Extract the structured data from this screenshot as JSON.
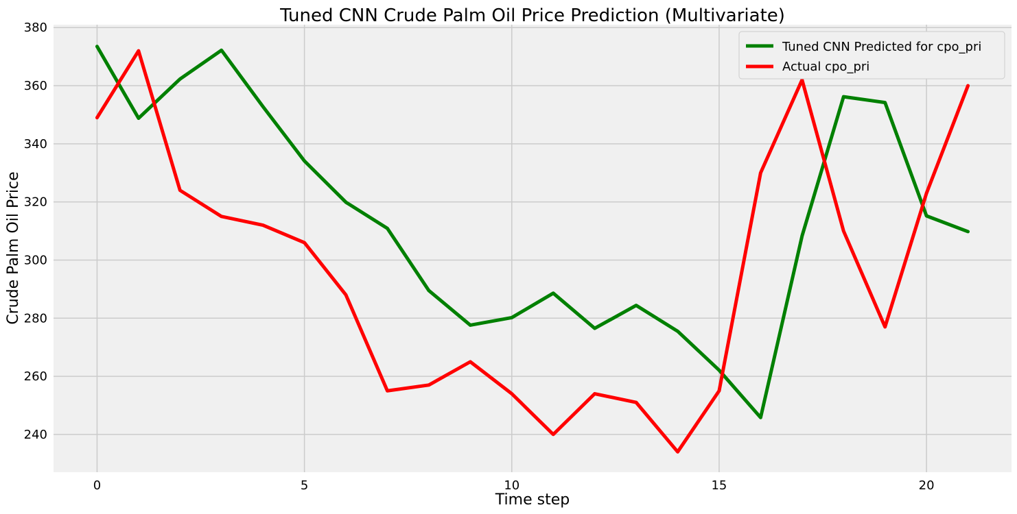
{
  "chart_data": {
    "type": "line",
    "title": "Tuned CNN Crude Palm Oil Price Prediction (Multivariate)",
    "xlabel": "Time step",
    "ylabel": "Crude Palm Oil Price",
    "xlim": [
      -1.05,
      22.05
    ],
    "ylim": [
      227,
      381
    ],
    "xticks": [
      0,
      5,
      10,
      15,
      20
    ],
    "yticks": [
      240,
      260,
      280,
      300,
      320,
      340,
      360,
      380
    ],
    "grid": true,
    "legend_position": "top-right",
    "x": [
      0,
      1,
      2,
      3,
      4,
      5,
      6,
      7,
      8,
      9,
      10,
      11,
      12,
      13,
      14,
      15,
      16,
      17,
      18,
      19,
      20,
      21
    ],
    "series": [
      {
        "name": "Tuned CNN Predicted for cpo_pri",
        "color": "#008000",
        "values": [
          373.5,
          348.8,
          362.3,
          372.2,
          352.8,
          334.1,
          319.9,
          310.9,
          289.5,
          277.6,
          280.2,
          288.6,
          276.5,
          284.4,
          275.5,
          262.1,
          245.8,
          308.3,
          356.2,
          354.2,
          315.2,
          309.8
        ]
      },
      {
        "name": "Actual cpo_pri",
        "color": "#ff0000",
        "values": [
          349,
          372,
          324,
          315,
          312,
          306,
          288,
          255,
          257,
          265,
          254,
          240,
          254,
          251,
          234,
          255,
          330,
          362,
          310,
          277,
          323,
          360
        ]
      }
    ]
  }
}
